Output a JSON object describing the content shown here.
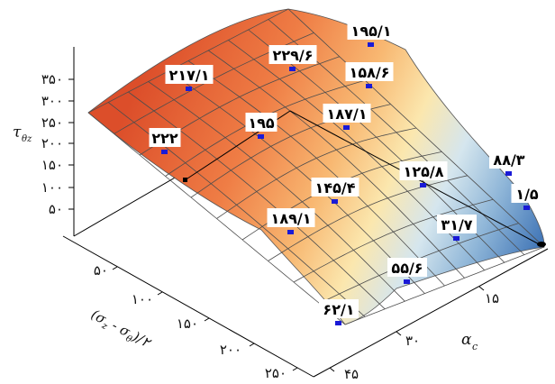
{
  "chart_data": {
    "type": "surface",
    "z_axis": {
      "label_main": "τ",
      "label_sub": "θz",
      "ticks": [
        "۵۰",
        "۱۰۰",
        "۱۵۰",
        "۲۰۰",
        "۲۵۰",
        "۳۰۰",
        "۳۵۰"
      ]
    },
    "y_axis": {
      "label_main": "α",
      "label_sub": "c",
      "ticks": [
        "۱۵",
        "۳۰",
        "۴۵"
      ]
    },
    "x_axis": {
      "label": "(σ",
      "label_sub1": "z",
      "label_mid": " - σ",
      "label_sub2": "θ",
      "label_end": ")/۲",
      "ticks": [
        "۵۰",
        "۱۰۰",
        "۱۵۰",
        "۲۰۰",
        "۲۵۰"
      ]
    },
    "data_labels": [
      {
        "text": "۱۹۵/۱"
      },
      {
        "text": "۲۲۹/۶"
      },
      {
        "text": "۲۱۷/۱"
      },
      {
        "text": "۱۵۸/۶"
      },
      {
        "text": "۱۸۷/۱"
      },
      {
        "text": "۱۹۵"
      },
      {
        "text": "۲۲۲"
      },
      {
        "text": "۸۸/۳"
      },
      {
        "text": "۱۲۵/۸"
      },
      {
        "text": "۱/۵"
      },
      {
        "text": "۱۴۵/۴"
      },
      {
        "text": "۱۸۹/۱"
      },
      {
        "text": "۳۱/۷"
      },
      {
        "text": "۵۵/۶"
      },
      {
        "text": "۶۲/۱"
      }
    ],
    "colors": {
      "high": "#dc4e2a",
      "mid": "#f8e7a8",
      "low": "#3f74b6",
      "marker": "#1a1ad6"
    }
  }
}
